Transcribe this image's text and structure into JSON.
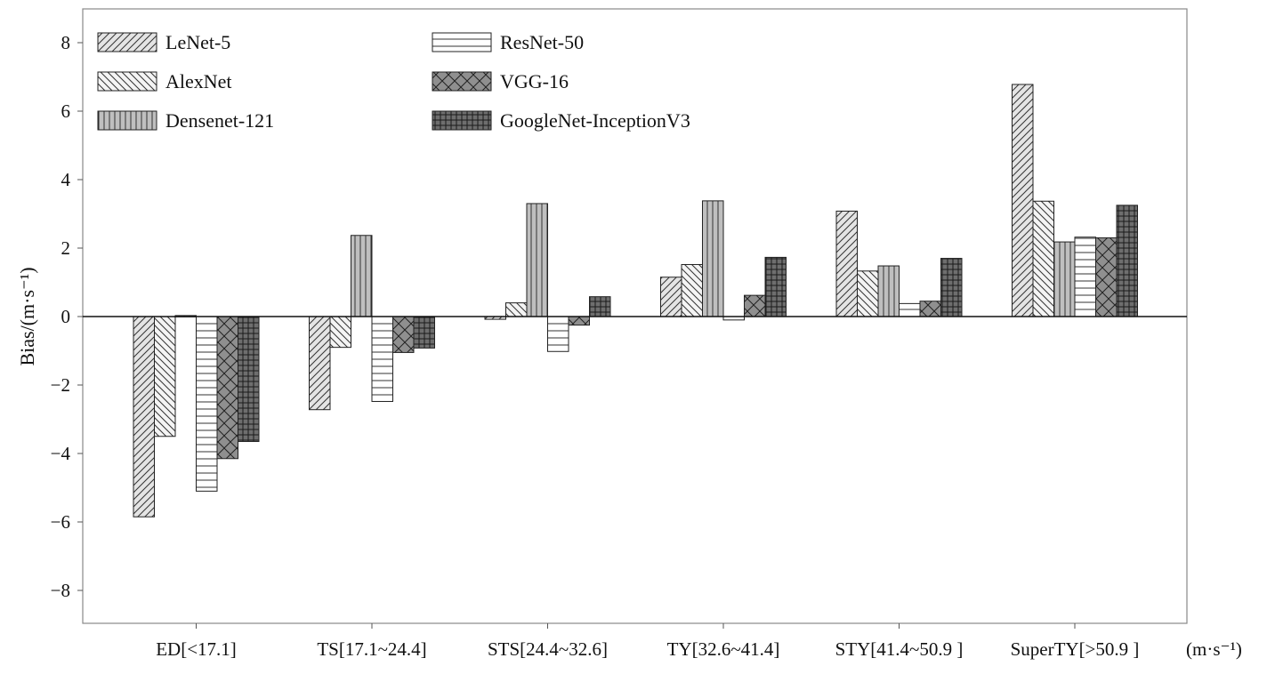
{
  "chart_data": {
    "type": "bar",
    "title": "",
    "ylabel": "Bias/(m·s⁻¹)",
    "xlabel_unit": "(m·s⁻¹)",
    "ylim": [
      -9,
      9
    ],
    "yticks": [
      8,
      6,
      4,
      2,
      0,
      -2,
      -4,
      -6,
      -8
    ],
    "ytick_labels": [
      "8",
      "6",
      "4",
      "2",
      "0",
      "−2",
      "−4",
      "−6",
      "−8"
    ],
    "categories": [
      "ED[<17.1]",
      "TS[17.1~24.4]",
      "STS[24.4~32.6]",
      "TY[32.6~41.4]",
      "STY[41.4~50.9 ]",
      "SuperTY[>50.9 ]"
    ],
    "legend_position": "top-left",
    "series": [
      {
        "name": "LeNet-5",
        "pattern": "diag-fwd",
        "fill": "#e4e4e4",
        "values": [
          -5.85,
          -2.72,
          -0.08,
          1.15,
          3.08,
          6.78
        ]
      },
      {
        "name": "AlexNet",
        "pattern": "diag-back",
        "fill": "#f4f4f4",
        "values": [
          -3.5,
          -0.9,
          0.4,
          1.52,
          1.33,
          3.37
        ]
      },
      {
        "name": "Densenet-121",
        "pattern": "vertical",
        "fill": "#bfbfbf",
        "values": [
          0.03,
          2.37,
          3.3,
          3.38,
          1.48,
          2.18
        ]
      },
      {
        "name": "ResNet-50",
        "pattern": "horizontal",
        "fill": "#ffffff",
        "values": [
          -5.1,
          -2.48,
          -1.02,
          -0.1,
          0.38,
          2.32
        ]
      },
      {
        "name": "VGG-16",
        "pattern": "crosshatch-diag",
        "fill": "#8f8f8f",
        "values": [
          -4.15,
          -1.05,
          -0.25,
          0.62,
          0.45,
          2.3
        ]
      },
      {
        "name": "GoogleNet-InceptionV3",
        "pattern": "grid",
        "fill": "#6e6e6e",
        "values": [
          -3.65,
          -0.92,
          0.58,
          1.73,
          1.7,
          3.25
        ]
      }
    ]
  }
}
